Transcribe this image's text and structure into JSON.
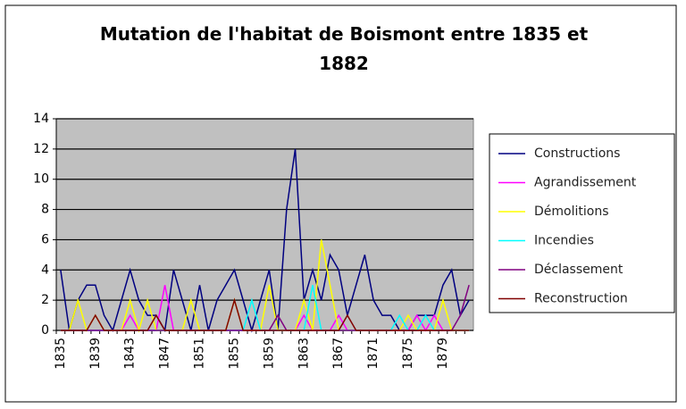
{
  "chart_data": {
    "type": "line",
    "title": "Mutation de l'habitat de Boismont entre 1835 et 1882",
    "categories": [
      "1835",
      null,
      null,
      null,
      "1839",
      null,
      null,
      null,
      "1843",
      null,
      null,
      null,
      "1847",
      null,
      null,
      null,
      "1851",
      null,
      null,
      null,
      "1855",
      null,
      null,
      null,
      "1859",
      null,
      null,
      null,
      "1863",
      null,
      null,
      null,
      "1867",
      null,
      null,
      null,
      "1871",
      null,
      null,
      null,
      "1875",
      null,
      null,
      null,
      "1879",
      null,
      null,
      null
    ],
    "series": [
      {
        "name": "Constructions",
        "color": "#000080",
        "values": [
          4,
          0,
          2,
          3,
          3,
          1,
          0,
          2,
          4,
          2,
          1,
          1,
          0,
          4,
          2,
          0,
          3,
          0,
          2,
          3,
          4,
          2,
          0,
          2,
          4,
          0,
          8,
          12,
          2,
          4,
          2,
          5,
          4,
          1,
          3,
          5,
          2,
          1,
          1,
          0,
          0,
          1,
          1,
          1,
          3,
          4,
          1,
          2
        ]
      },
      {
        "name": "Agrandissement",
        "color": "#ff00ff",
        "values": [
          0,
          0,
          0,
          0,
          0,
          0,
          0,
          0,
          1,
          0,
          0,
          0,
          3,
          0,
          0,
          0,
          0,
          0,
          0,
          0,
          0,
          0,
          0,
          0,
          0,
          0,
          0,
          0,
          1,
          0,
          0,
          0,
          1,
          0,
          0,
          0,
          0,
          0,
          0,
          0,
          0,
          1,
          0,
          1,
          0,
          0,
          0,
          0
        ]
      },
      {
        "name": "Démolitions",
        "color": "#ffff00",
        "values": [
          0,
          0,
          2,
          0,
          1,
          0,
          0,
          0,
          2,
          0,
          2,
          0,
          0,
          0,
          0,
          2,
          0,
          0,
          0,
          0,
          2,
          0,
          0,
          0,
          3,
          0,
          0,
          0,
          2,
          0,
          6,
          3,
          0,
          0,
          0,
          0,
          0,
          0,
          0,
          0,
          1,
          0,
          0,
          0,
          2,
          0,
          0,
          0
        ]
      },
      {
        "name": "Incendies",
        "color": "#00ffff",
        "values": [
          0,
          0,
          0,
          0,
          0,
          0,
          0,
          0,
          0,
          0,
          0,
          0,
          0,
          0,
          0,
          0,
          0,
          0,
          0,
          0,
          0,
          0,
          2,
          0,
          0,
          0,
          0,
          0,
          0,
          3,
          0,
          0,
          0,
          0,
          0,
          0,
          0,
          0,
          0,
          1,
          0,
          0,
          1,
          0,
          0,
          0,
          0,
          0
        ]
      },
      {
        "name": "Déclassement",
        "color": "#800080",
        "values": [
          0,
          0,
          0,
          0,
          0,
          0,
          0,
          0,
          0,
          0,
          0,
          0,
          0,
          0,
          0,
          0,
          0,
          0,
          0,
          0,
          0,
          0,
          0,
          0,
          0,
          1,
          0,
          0,
          0,
          0,
          0,
          0,
          0,
          0,
          0,
          0,
          0,
          0,
          0,
          0,
          0,
          0,
          0,
          0,
          0,
          0,
          1,
          3
        ]
      },
      {
        "name": "Reconstruction",
        "color": "#800000",
        "values": [
          0,
          0,
          0,
          0,
          1,
          0,
          0,
          0,
          0,
          0,
          0,
          1,
          0,
          0,
          0,
          0,
          0,
          0,
          0,
          0,
          2,
          0,
          0,
          0,
          0,
          0,
          0,
          0,
          0,
          0,
          0,
          0,
          0,
          1,
          0,
          0,
          0,
          0,
          0,
          0,
          0,
          0,
          0,
          0,
          0,
          0,
          0,
          0
        ]
      }
    ],
    "ylim": [
      0,
      14
    ],
    "yticks": [
      0,
      2,
      4,
      6,
      8,
      10,
      12,
      14
    ],
    "grid": true,
    "legend": "right"
  }
}
